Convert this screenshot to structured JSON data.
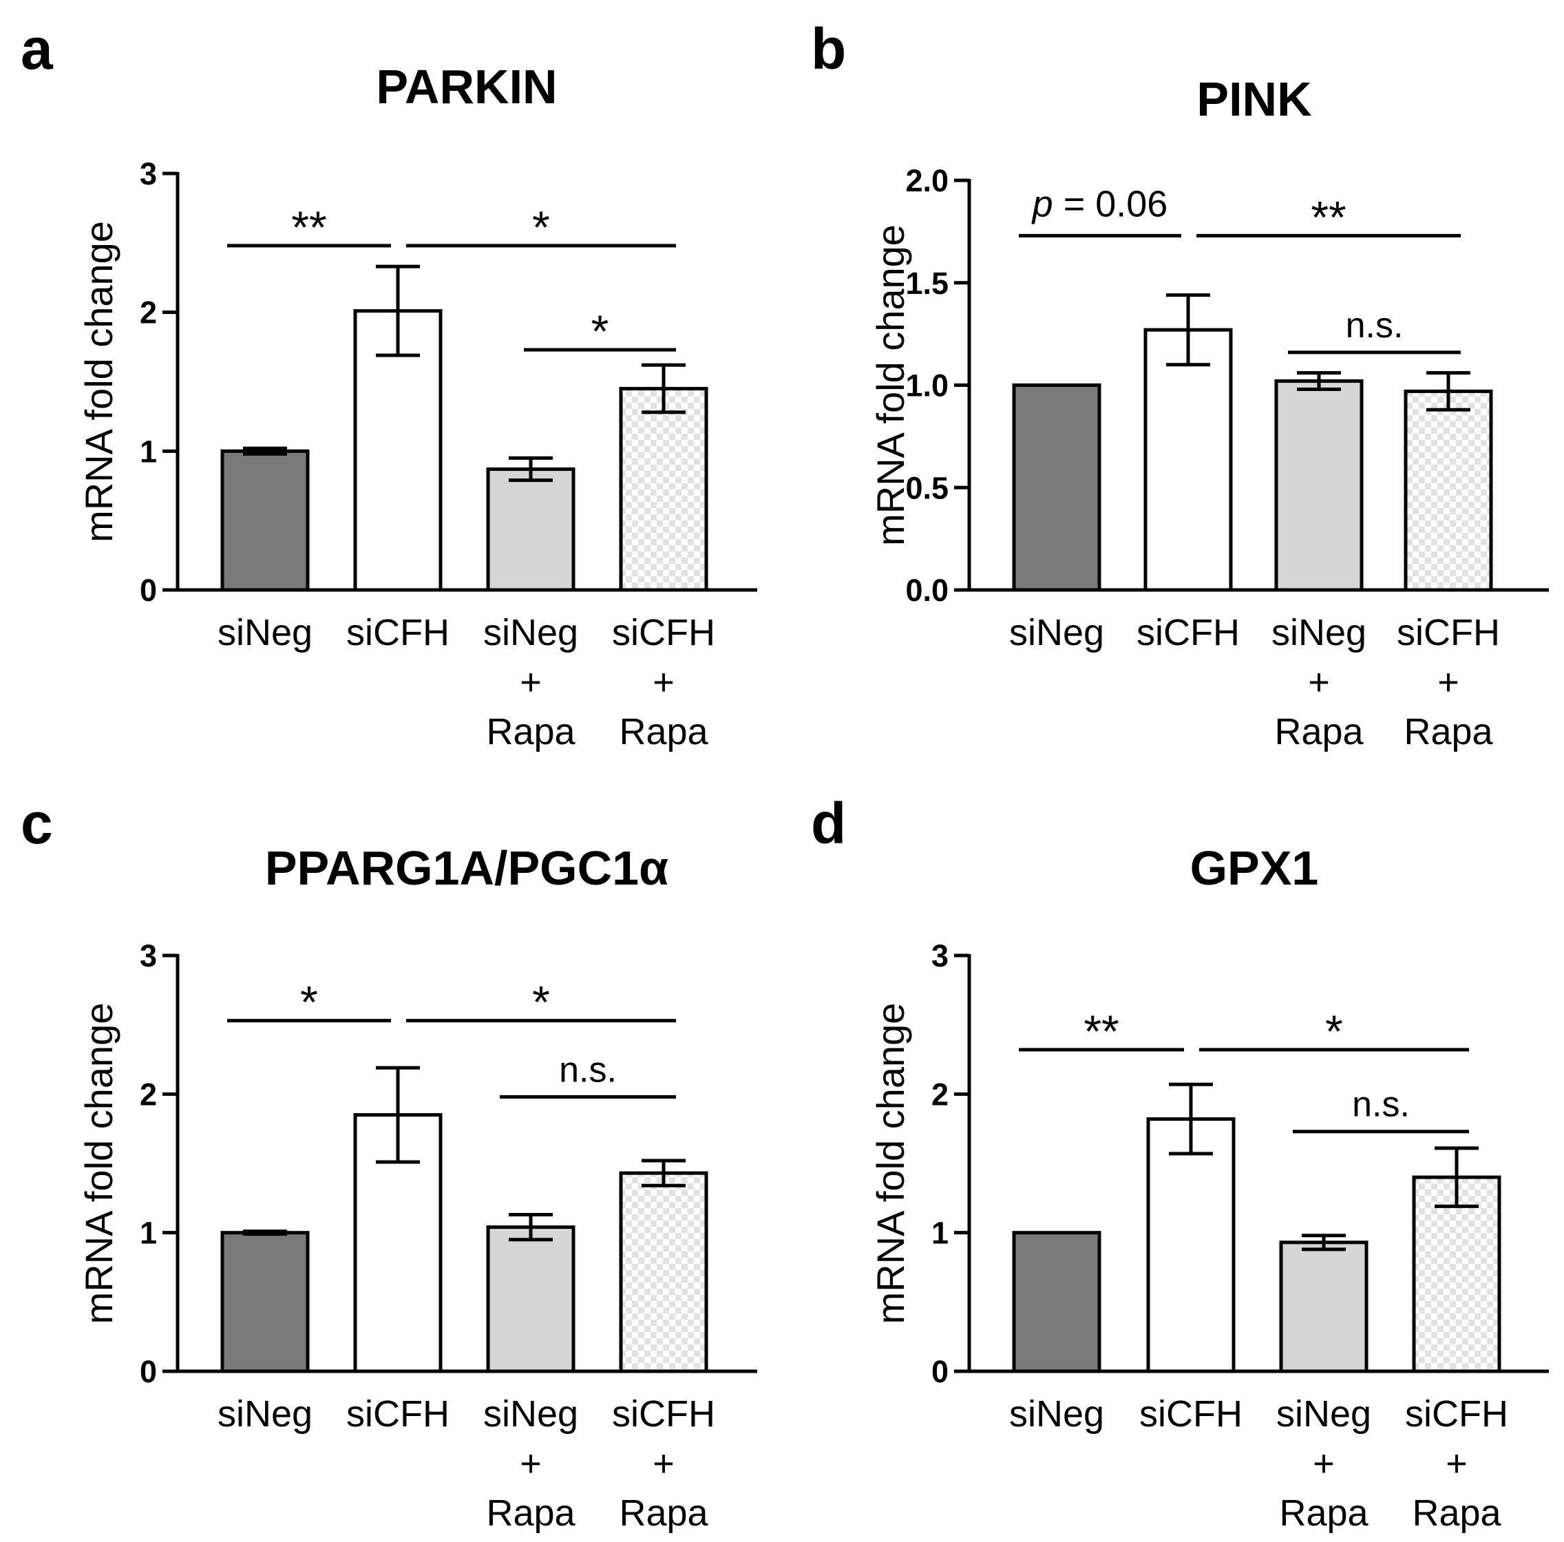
{
  "chart_data": [
    {
      "type": "bar",
      "panel": "a",
      "title": "PARKIN",
      "ylabel": "mRNA fold change",
      "ylim": [
        0,
        3
      ],
      "yticks": [
        "0",
        "1",
        "2",
        "3"
      ],
      "categories": [
        [
          "siNeg"
        ],
        [
          "siCFH"
        ],
        [
          "siNeg",
          "+",
          "Rapa"
        ],
        [
          "siCFH",
          "+",
          "Rapa"
        ]
      ],
      "values": [
        1.0,
        2.01,
        0.87,
        1.45
      ],
      "errors": [
        0.02,
        0.32,
        0.08,
        0.17
      ],
      "fills": [
        "dark-gray",
        "white",
        "light-gray",
        "checkered"
      ],
      "comparisons": [
        {
          "from": 0,
          "to": 1,
          "y": 2.48,
          "label": "**"
        },
        {
          "from": 1,
          "to": 3,
          "y": 2.48,
          "label": "*"
        },
        {
          "from": 2,
          "to": 3,
          "y": 1.73,
          "label": "*"
        }
      ]
    },
    {
      "type": "bar",
      "panel": "b",
      "title": "PINK",
      "ylabel": "mRNA fold change",
      "ylim": [
        0,
        2.0
      ],
      "yticks": [
        "0.0",
        "0.5",
        "1.0",
        "1.5",
        "2.0"
      ],
      "categories": [
        [
          "siNeg"
        ],
        [
          "siCFH"
        ],
        [
          "siNeg",
          "+",
          "Rapa"
        ],
        [
          "siCFH",
          "+",
          "Rapa"
        ]
      ],
      "values": [
        1.0,
        1.27,
        1.02,
        0.97
      ],
      "errors": [
        0.0,
        0.17,
        0.04,
        0.09
      ],
      "fills": [
        "dark-gray",
        "white",
        "light-gray",
        "checkered"
      ],
      "comparisons": [
        {
          "from": 0,
          "to": 1,
          "y": 1.73,
          "label": "= 0.06",
          "italic_prefix": "p"
        },
        {
          "from": 1,
          "to": 3,
          "y": 1.73,
          "label": "**"
        },
        {
          "from": 2,
          "to": 3,
          "y": 1.16,
          "label": "n.s."
        }
      ]
    },
    {
      "type": "bar",
      "panel": "c",
      "title": "PPARG1A/PGC1α",
      "ylabel": "mRNA fold change",
      "ylim": [
        0,
        3
      ],
      "yticks": [
        "0",
        "1",
        "2",
        "3"
      ],
      "categories": [
        [
          "siNeg"
        ],
        [
          "siCFH"
        ],
        [
          "siNeg",
          "+",
          "Rapa"
        ],
        [
          "siCFH",
          "+",
          "Rapa"
        ]
      ],
      "values": [
        1.0,
        1.85,
        1.04,
        1.43
      ],
      "errors": [
        0.01,
        0.34,
        0.09,
        0.09
      ],
      "fills": [
        "dark-gray",
        "white",
        "light-gray",
        "checkered"
      ],
      "comparisons": [
        {
          "from": 0,
          "to": 1,
          "y": 2.53,
          "label": "*"
        },
        {
          "from": 1,
          "to": 3,
          "y": 2.53,
          "label": "*"
        },
        {
          "from": 2,
          "to": 3,
          "y": 1.98,
          "label": "n.s."
        }
      ]
    },
    {
      "type": "bar",
      "panel": "d",
      "title": "GPX1",
      "ylabel": "mRNA fold change",
      "ylim": [
        0,
        3
      ],
      "yticks": [
        "0",
        "1",
        "2",
        "3"
      ],
      "categories": [
        [
          "siNeg"
        ],
        [
          "siCFH"
        ],
        [
          "siNeg",
          "+",
          "Rapa"
        ],
        [
          "siCFH",
          "+",
          "Rapa"
        ]
      ],
      "values": [
        1.0,
        1.82,
        0.93,
        1.4
      ],
      "errors": [
        0.0,
        0.25,
        0.05,
        0.21
      ],
      "fills": [
        "dark-gray",
        "white",
        "light-gray",
        "checkered"
      ],
      "comparisons": [
        {
          "from": 0,
          "to": 1,
          "y": 2.32,
          "label": "**"
        },
        {
          "from": 1,
          "to": 3,
          "y": 2.32,
          "label": "*"
        },
        {
          "from": 2,
          "to": 3,
          "y": 1.73,
          "label": "n.s."
        }
      ]
    }
  ],
  "colors": {
    "dark-gray": "#7a7a7a",
    "light-gray": "#d6d6d6",
    "white": "#ffffff",
    "check-a": "#ffffff",
    "check-b": "#e2e2e2",
    "ink": "#000000"
  }
}
